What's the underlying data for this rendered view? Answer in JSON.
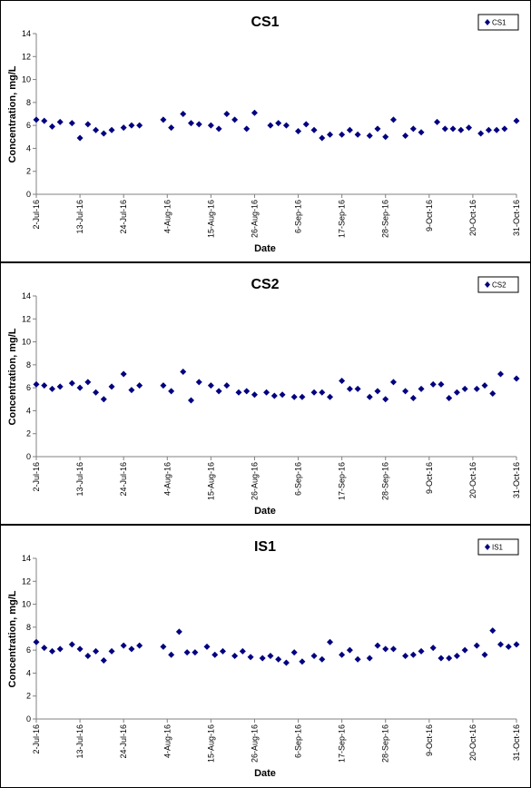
{
  "colors": {
    "marker": "#000080",
    "axis": "#808080",
    "frame": "#000000"
  },
  "chart_data": [
    {
      "type": "scatter",
      "title": "CS1",
      "xlabel": "Date",
      "ylabel": "Concentration, mg/L",
      "ylim": [
        0,
        14
      ],
      "yticks": [
        "0",
        "2",
        "4",
        "6",
        "8",
        "10",
        "12",
        "14"
      ],
      "xlim": [
        "2016-07-02",
        "2016-10-31"
      ],
      "xticks": [
        "2-Jul-16",
        "13-Jul-16",
        "24-Jul-16",
        "4-Aug-16",
        "15-Aug-16",
        "26-Aug-16",
        "6-Sep-16",
        "17-Sep-16",
        "28-Sep-16",
        "9-Oct-16",
        "20-Oct-16",
        "31-Oct-16"
      ],
      "grid": false,
      "legend_position": "top-right",
      "series": [
        {
          "name": "CS1",
          "marker": "diamond",
          "x": [
            "2016-07-02",
            "2016-07-04",
            "2016-07-06",
            "2016-07-08",
            "2016-07-11",
            "2016-07-13",
            "2016-07-15",
            "2016-07-17",
            "2016-07-19",
            "2016-07-21",
            "2016-07-24",
            "2016-07-26",
            "2016-07-28",
            "2016-08-03",
            "2016-08-05",
            "2016-08-08",
            "2016-08-10",
            "2016-08-12",
            "2016-08-15",
            "2016-08-17",
            "2016-08-19",
            "2016-08-21",
            "2016-08-24",
            "2016-08-26",
            "2016-08-30",
            "2016-09-01",
            "2016-09-03",
            "2016-09-06",
            "2016-09-08",
            "2016-09-10",
            "2016-09-12",
            "2016-09-14",
            "2016-09-17",
            "2016-09-19",
            "2016-09-21",
            "2016-09-24",
            "2016-09-26",
            "2016-09-28",
            "2016-09-30",
            "2016-10-03",
            "2016-10-05",
            "2016-10-07",
            "2016-10-11",
            "2016-10-13",
            "2016-10-15",
            "2016-10-17",
            "2016-10-19",
            "2016-10-22",
            "2016-10-24",
            "2016-10-26",
            "2016-10-28",
            "2016-10-31"
          ],
          "y": [
            6.5,
            6.4,
            5.9,
            6.3,
            6.2,
            4.9,
            6.1,
            5.6,
            5.3,
            5.6,
            5.8,
            6.0,
            6.0,
            6.5,
            5.8,
            7.0,
            6.2,
            6.1,
            6.0,
            5.7,
            7.0,
            6.5,
            5.7,
            7.1,
            6.0,
            6.2,
            6.0,
            5.5,
            6.1,
            5.6,
            4.9,
            5.2,
            5.2,
            5.6,
            5.2,
            5.1,
            5.7,
            5.0,
            6.5,
            5.1,
            5.7,
            5.4,
            6.3,
            5.7,
            5.7,
            5.6,
            5.8,
            5.3,
            5.6,
            5.6,
            5.7,
            6.4
          ]
        }
      ]
    },
    {
      "type": "scatter",
      "title": "CS2",
      "xlabel": "Date",
      "ylabel": "Concentration, mg/L",
      "ylim": [
        0,
        14
      ],
      "yticks": [
        "0",
        "2",
        "4",
        "6",
        "8",
        "10",
        "12",
        "14"
      ],
      "xlim": [
        "2016-07-02",
        "2016-10-31"
      ],
      "xticks": [
        "2-Jul-16",
        "13-Jul-16",
        "24-Jul-16",
        "4-Aug-16",
        "15-Aug-16",
        "26-Aug-16",
        "6-Sep-16",
        "17-Sep-16",
        "28-Sep-16",
        "9-Oct-16",
        "20-Oct-16",
        "31-Oct-16"
      ],
      "grid": false,
      "legend_position": "top-right",
      "series": [
        {
          "name": "CS2",
          "marker": "diamond",
          "x": [
            "2016-07-02",
            "2016-07-04",
            "2016-07-06",
            "2016-07-08",
            "2016-07-11",
            "2016-07-13",
            "2016-07-15",
            "2016-07-17",
            "2016-07-19",
            "2016-07-21",
            "2016-07-24",
            "2016-07-26",
            "2016-07-28",
            "2016-08-03",
            "2016-08-05",
            "2016-08-08",
            "2016-08-10",
            "2016-08-12",
            "2016-08-15",
            "2016-08-17",
            "2016-08-19",
            "2016-08-22",
            "2016-08-24",
            "2016-08-26",
            "2016-08-29",
            "2016-08-31",
            "2016-09-02",
            "2016-09-05",
            "2016-09-07",
            "2016-09-10",
            "2016-09-12",
            "2016-09-14",
            "2016-09-17",
            "2016-09-19",
            "2016-09-21",
            "2016-09-24",
            "2016-09-26",
            "2016-09-28",
            "2016-09-30",
            "2016-10-03",
            "2016-10-05",
            "2016-10-07",
            "2016-10-10",
            "2016-10-12",
            "2016-10-14",
            "2016-10-16",
            "2016-10-18",
            "2016-10-21",
            "2016-10-23",
            "2016-10-25",
            "2016-10-27",
            "2016-10-31"
          ],
          "y": [
            6.3,
            6.2,
            5.9,
            6.1,
            6.4,
            6.0,
            6.5,
            5.6,
            5.0,
            6.1,
            7.2,
            5.8,
            6.2,
            6.2,
            5.7,
            7.4,
            4.9,
            6.5,
            6.2,
            5.7,
            6.2,
            5.6,
            5.7,
            5.4,
            5.6,
            5.3,
            5.4,
            5.2,
            5.2,
            5.6,
            5.6,
            5.2,
            6.6,
            5.9,
            5.9,
            5.2,
            5.7,
            5.0,
            6.5,
            5.7,
            5.1,
            5.9,
            6.3,
            6.3,
            5.1,
            5.6,
            5.9,
            5.9,
            6.2,
            5.5,
            7.2,
            6.8
          ]
        }
      ]
    },
    {
      "type": "scatter",
      "title": "IS1",
      "xlabel": "Date",
      "ylabel": "Concentration, mg/L",
      "ylim": [
        0,
        14
      ],
      "yticks": [
        "0",
        "2",
        "4",
        "6",
        "8",
        "10",
        "12",
        "14"
      ],
      "xlim": [
        "2016-07-02",
        "2016-10-31"
      ],
      "xticks": [
        "2-Jul-16",
        "13-Jul-16",
        "24-Jul-16",
        "4-Aug-16",
        "15-Aug-16",
        "26-Aug-16",
        "6-Sep-16",
        "17-Sep-16",
        "28-Sep-16",
        "9-Oct-16",
        "20-Oct-16",
        "31-Oct-16"
      ],
      "grid": false,
      "legend_position": "top-right",
      "series": [
        {
          "name": "IS1",
          "marker": "diamond",
          "x": [
            "2016-07-02",
            "2016-07-04",
            "2016-07-06",
            "2016-07-08",
            "2016-07-11",
            "2016-07-13",
            "2016-07-15",
            "2016-07-17",
            "2016-07-19",
            "2016-07-21",
            "2016-07-24",
            "2016-07-26",
            "2016-07-28",
            "2016-08-03",
            "2016-08-05",
            "2016-08-07",
            "2016-08-09",
            "2016-08-11",
            "2016-08-14",
            "2016-08-16",
            "2016-08-18",
            "2016-08-21",
            "2016-08-23",
            "2016-08-25",
            "2016-08-28",
            "2016-08-30",
            "2016-09-01",
            "2016-09-03",
            "2016-09-05",
            "2016-09-07",
            "2016-09-10",
            "2016-09-12",
            "2016-09-14",
            "2016-09-17",
            "2016-09-19",
            "2016-09-21",
            "2016-09-24",
            "2016-09-26",
            "2016-09-28",
            "2016-09-30",
            "2016-10-03",
            "2016-10-05",
            "2016-10-07",
            "2016-10-10",
            "2016-10-12",
            "2016-10-14",
            "2016-10-16",
            "2016-10-18",
            "2016-10-21",
            "2016-10-23",
            "2016-10-25",
            "2016-10-27",
            "2016-10-29",
            "2016-10-31"
          ],
          "y": [
            6.7,
            6.2,
            5.9,
            6.1,
            6.5,
            6.1,
            5.5,
            5.9,
            5.1,
            5.9,
            6.4,
            6.1,
            6.4,
            6.3,
            5.6,
            7.6,
            5.8,
            5.8,
            6.3,
            5.6,
            5.9,
            5.5,
            5.9,
            5.4,
            5.3,
            5.5,
            5.2,
            4.9,
            5.8,
            5.0,
            5.5,
            5.2,
            6.7,
            5.6,
            6.0,
            5.2,
            5.3,
            6.4,
            6.1,
            6.1,
            5.5,
            5.6,
            5.9,
            6.2,
            5.3,
            5.3,
            5.5,
            6.0,
            6.4,
            5.6,
            7.7,
            6.5,
            6.3,
            6.5
          ]
        }
      ]
    }
  ]
}
